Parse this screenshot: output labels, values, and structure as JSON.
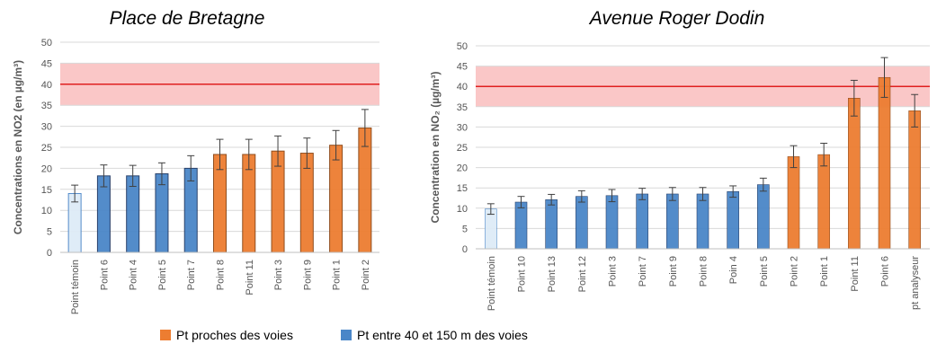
{
  "chart_data": [
    {
      "type": "bar",
      "title": "Place de Bretagne",
      "ylabel": "Concentrations en NO2 (en µg/m³)",
      "ylim": [
        0,
        50
      ],
      "yticks": [
        0,
        5,
        10,
        15,
        20,
        25,
        30,
        35,
        40,
        45,
        50
      ],
      "limit_line": 40,
      "limit_band": [
        35,
        45
      ],
      "categories": [
        "Point témoin",
        "Point 6",
        "Point 4",
        "Point 5",
        "Point 7",
        "Point 8",
        "Point 11",
        "Point 3",
        "Point 9",
        "Point 1",
        "Point 2"
      ],
      "values": [
        14,
        18.2,
        18.2,
        18.7,
        20,
        23.3,
        23.3,
        24.1,
        23.6,
        25.5,
        29.6
      ],
      "error": [
        2,
        2.6,
        2.5,
        2.6,
        3,
        3.6,
        3.6,
        3.6,
        3.6,
        3.5,
        4.4
      ],
      "groups": [
        "temoin",
        "far",
        "far",
        "far",
        "far",
        "near",
        "near",
        "near",
        "near",
        "near",
        "near"
      ]
    },
    {
      "type": "bar",
      "title": "Avenue Roger Dodin",
      "ylabel": "Concentration en NO₂ (µg/m³)",
      "ylim": [
        0,
        50
      ],
      "yticks": [
        0,
        5,
        10,
        15,
        20,
        25,
        30,
        35,
        40,
        45,
        50
      ],
      "limit_line": 40,
      "limit_band": [
        35,
        45
      ],
      "categories": [
        "Point témoin",
        "Point 10",
        "Point 13",
        "Point 12",
        "Point 3",
        "Point 7",
        "Point 9",
        "Point 8",
        "Poin 4",
        "Point 5",
        "Point 2",
        "Point 1",
        "Point 11",
        "Point 6",
        "pt analyseur"
      ],
      "values": [
        9.8,
        11.5,
        12.1,
        12.9,
        13.1,
        13.5,
        13.5,
        13.5,
        14.1,
        15.8,
        22.7,
        23.2,
        37.1,
        42.2,
        34
      ],
      "error": [
        1.3,
        1.4,
        1.3,
        1.4,
        1.5,
        1.4,
        1.6,
        1.6,
        1.4,
        1.6,
        2.7,
        2.8,
        4.4,
        4.9,
        4
      ],
      "groups": [
        "temoin",
        "far",
        "far",
        "far",
        "far",
        "far",
        "far",
        "far",
        "far",
        "far",
        "near",
        "near",
        "near",
        "near",
        "near"
      ]
    }
  ],
  "legend": [
    {
      "label": "Pt proches des voies",
      "color": "#ED7D31"
    },
    {
      "label": "Pt entre 40 et 150 m des voies",
      "color": "#4A86C8"
    }
  ],
  "colors": {
    "near": "#ED7D31",
    "far": "#4A86C8",
    "temoin": "#DEEBF7",
    "limit_line": "#E02020",
    "limit_band": "#F8B4B4",
    "grid": "#D9D9D9",
    "error_bar": "#404040"
  }
}
